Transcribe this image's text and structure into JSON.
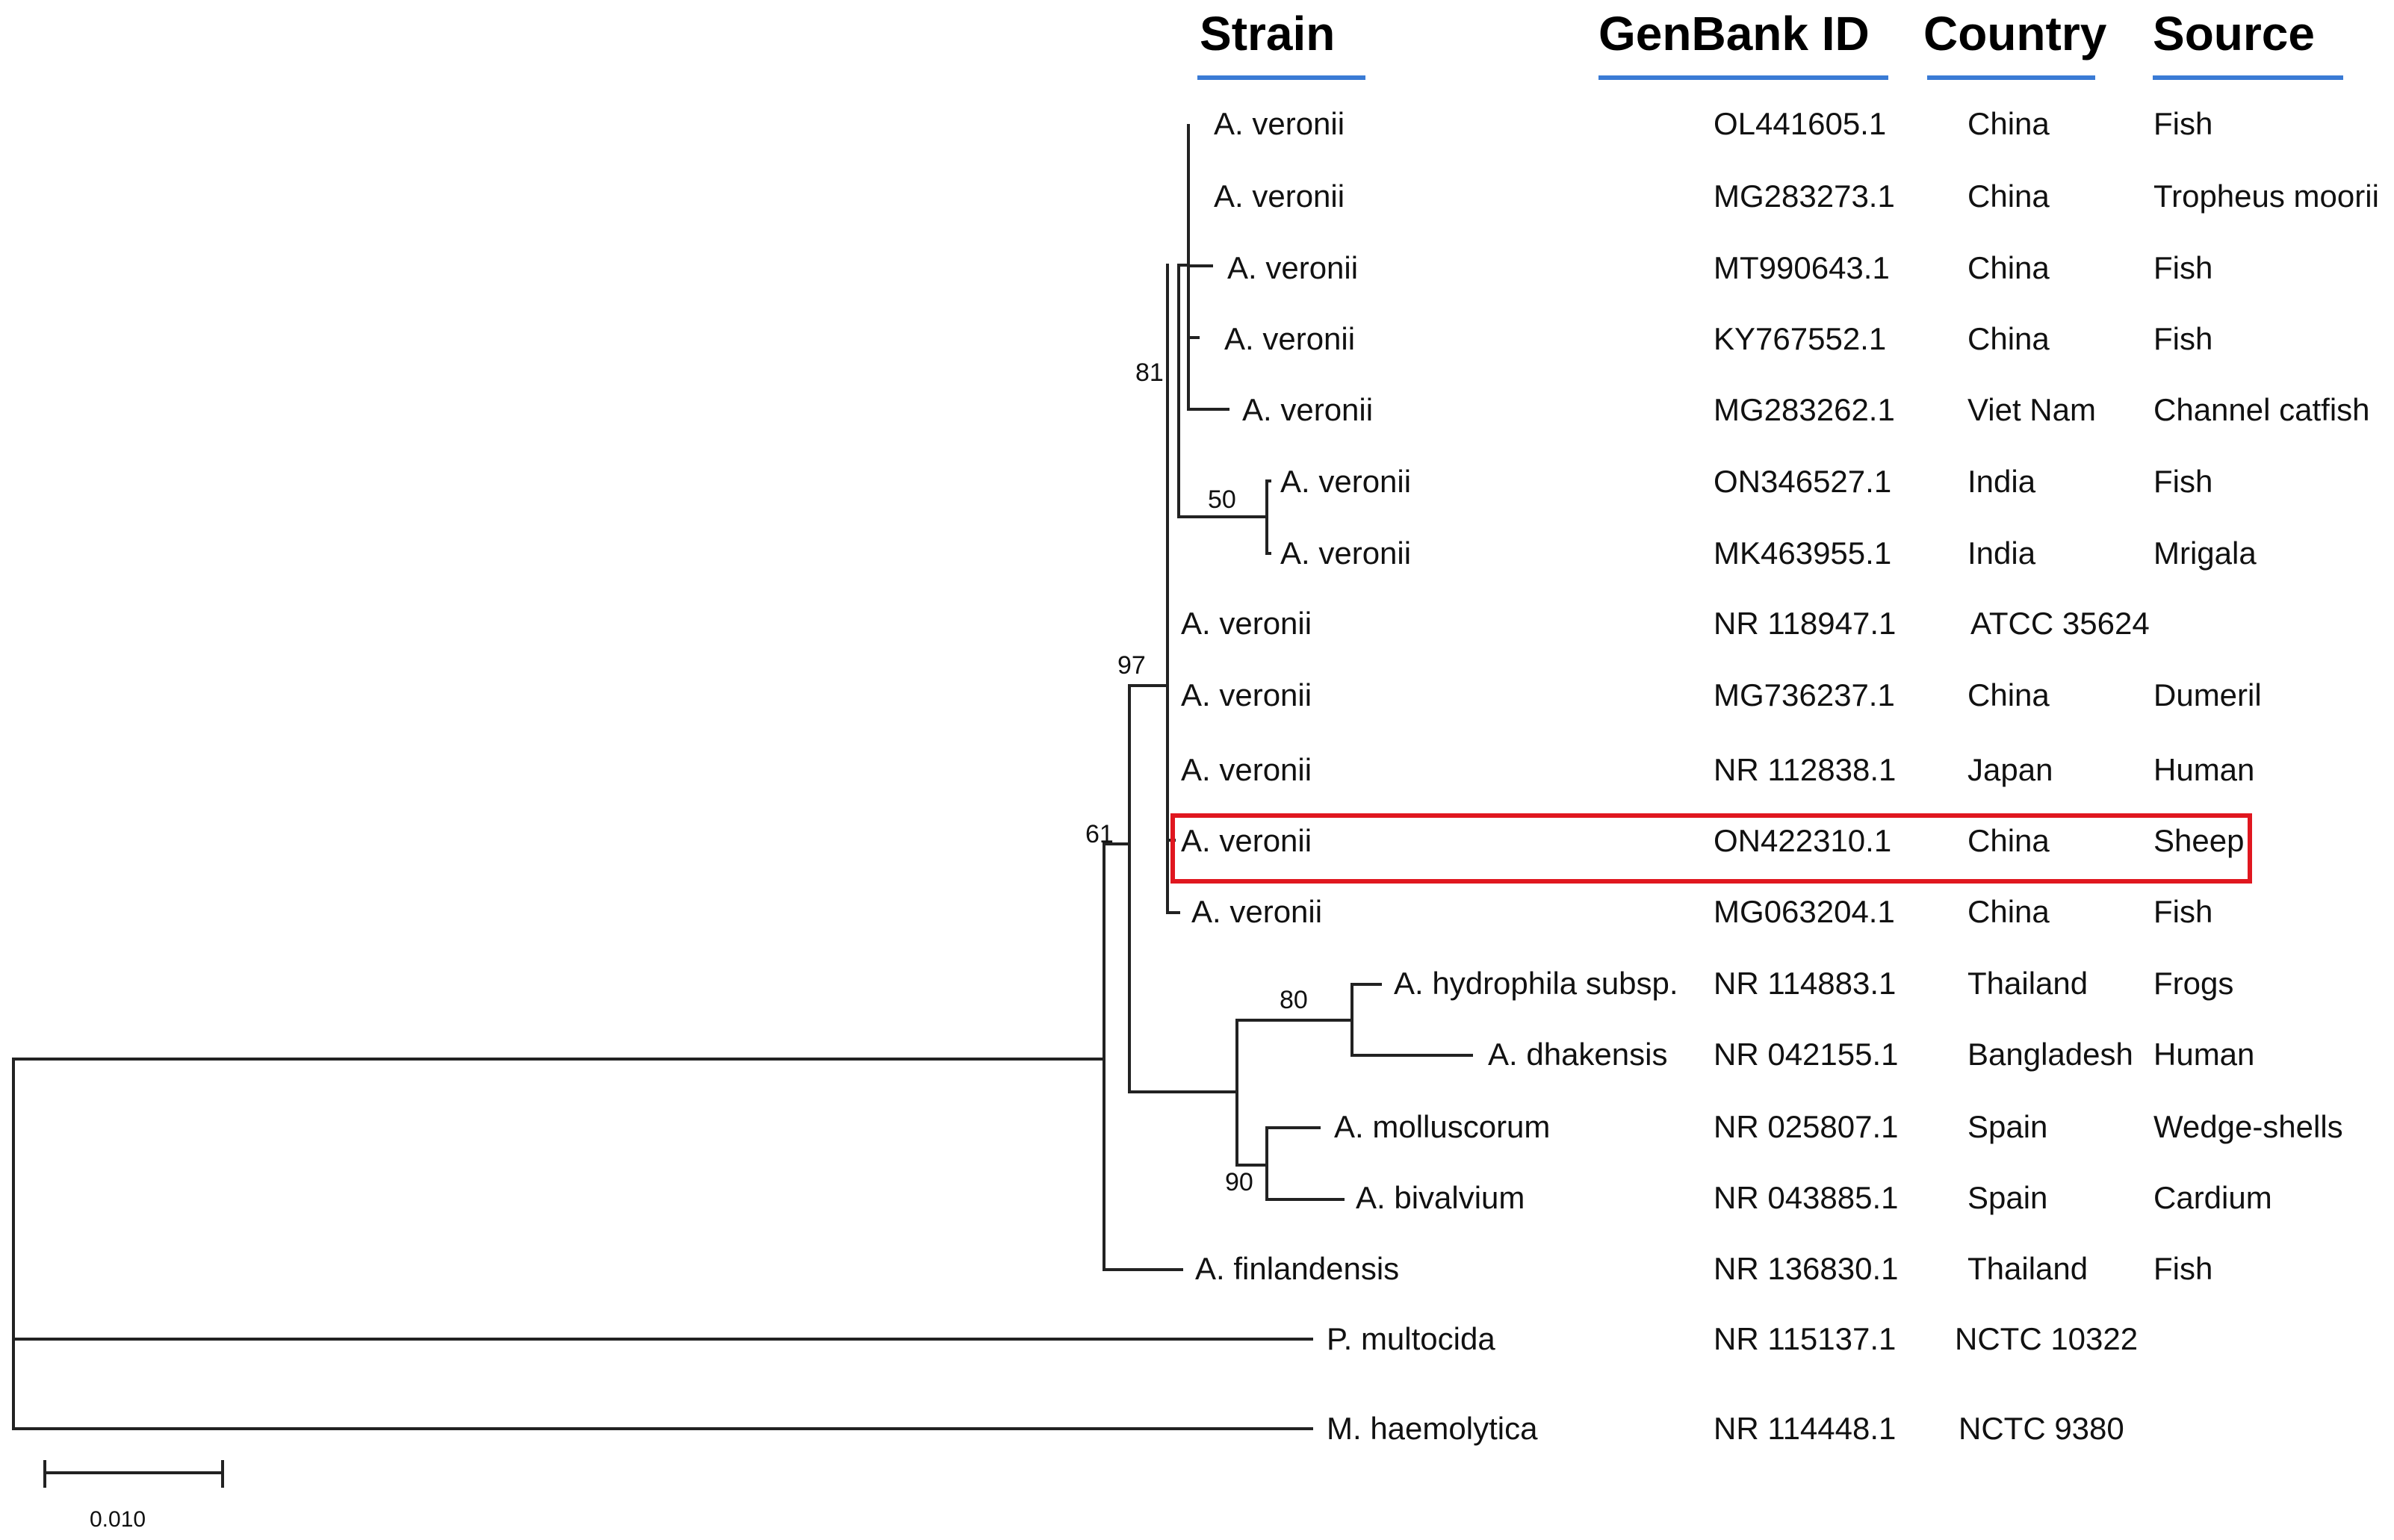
{
  "headers": {
    "strain": "Strain",
    "genbank": "GenBank ID",
    "country": "Country",
    "source": "Source"
  },
  "colors": {
    "header_underline": "#3a7bd5",
    "highlight_box": "#e0171f",
    "lines": "#222222"
  },
  "rows": [
    {
      "strain": "A. veronii",
      "genbank": "OL441605.1",
      "country": "China",
      "source": "Fish"
    },
    {
      "strain": "A. veronii",
      "genbank": "MG283273.1",
      "country": "China",
      "source": "Tropheus moorii"
    },
    {
      "strain": "A. veronii",
      "genbank": "MT990643.1",
      "country": "China",
      "source": "Fish"
    },
    {
      "strain": "A. veronii",
      "genbank": "KY767552.1",
      "country": "China",
      "source": "Fish"
    },
    {
      "strain": "A. veronii",
      "genbank": "MG283262.1",
      "country": "Viet Nam",
      "source": "Channel catfish"
    },
    {
      "strain": "A. veronii",
      "genbank": "ON346527.1",
      "country": "India",
      "source": "Fish"
    },
    {
      "strain": "A. veronii",
      "genbank": "MK463955.1",
      "country": "India",
      "source": "Mrigala"
    },
    {
      "strain": "A. veronii",
      "genbank": "NR 118947.1",
      "country": "ATCC 35624",
      "source": ""
    },
    {
      "strain": "A. veronii",
      "genbank": "MG736237.1",
      "country": "China",
      "source": "Dumeril"
    },
    {
      "strain": "A. veronii",
      "genbank": "NR 112838.1",
      "country": "Japan",
      "source": "Human"
    },
    {
      "strain": "A. veronii",
      "genbank": "ON422310.1",
      "country": "China",
      "source": "Sheep"
    },
    {
      "strain": "A. veronii",
      "genbank": "MG063204.1",
      "country": "China",
      "source": "Fish"
    },
    {
      "strain": "A. hydrophila subsp.",
      "genbank": "NR 114883.1",
      "country": "Thailand",
      "source": "Frogs"
    },
    {
      "strain": "A. dhakensis",
      "genbank": "NR 042155.1",
      "country": "Bangladesh",
      "source": "Human"
    },
    {
      "strain": "A. molluscorum",
      "genbank": "NR 025807.1",
      "country": "Spain",
      "source": "Wedge-shells"
    },
    {
      "strain": "A. bivalvium",
      "genbank": "NR 043885.1",
      "country": "Spain",
      "source": "Cardium"
    },
    {
      "strain": "A. finlandensis",
      "genbank": "NR 136830.1",
      "country": "Thailand",
      "source": "Fish"
    },
    {
      "strain": "P. multocida",
      "genbank": "NR 115137.1",
      "country": "NCTC 10322",
      "source": ""
    },
    {
      "strain": "M. haemolytica",
      "genbank": "NR 114448.1",
      "country": "NCTC 9380",
      "source": ""
    }
  ],
  "bootstrap": {
    "b81": "81",
    "b50": "50",
    "b97": "97",
    "b61": "61",
    "b80": "80",
    "b90": "90"
  },
  "scale_bar": {
    "label": "0.010"
  }
}
